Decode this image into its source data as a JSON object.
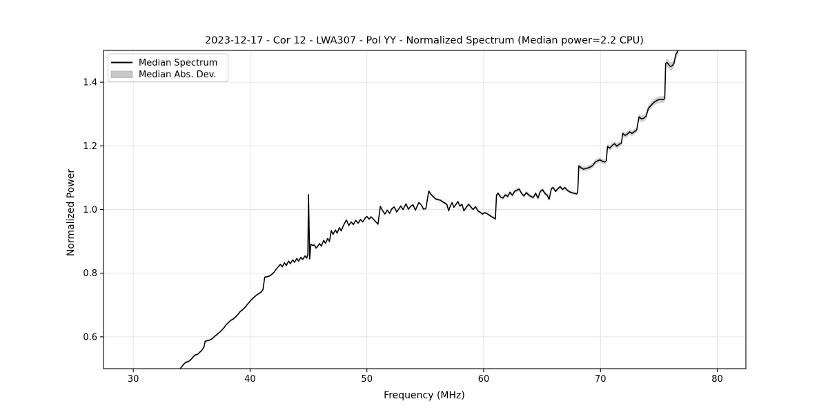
{
  "chart_data": {
    "type": "line",
    "title": "2023-12-17 - Cor 12 - LWA307 - Pol YY - Normalized Spectrum (Median power=2.2 CPU)",
    "xlabel": "Frequency (MHz)",
    "ylabel": "Normalized Power",
    "xlim": [
      27.45,
      82.45
    ],
    "ylim": [
      0.5,
      1.5
    ],
    "xticks": [
      30,
      40,
      50,
      60,
      70,
      80
    ],
    "yticks": [
      0.6,
      0.8,
      1.0,
      1.2,
      1.4
    ],
    "grid": true,
    "legend": {
      "position": "upper-left",
      "entries": [
        {
          "label": "Median Spectrum",
          "type": "line",
          "color": "#000000"
        },
        {
          "label": "Median Abs. Dev.",
          "type": "patch",
          "color": "#c9c9c9"
        }
      ]
    },
    "colors": {
      "line": "#000000",
      "band": "#c9c9c9",
      "grid": "#e4e4e4",
      "spine": "#000000"
    },
    "series": [
      {
        "name": "Median Spectrum",
        "points": [
          [
            33.95,
            0.497
          ],
          [
            34.1,
            0.504
          ],
          [
            34.25,
            0.511
          ],
          [
            34.4,
            0.517
          ],
          [
            34.55,
            0.521
          ],
          [
            34.7,
            0.522
          ],
          [
            34.85,
            0.526
          ],
          [
            35.0,
            0.531
          ],
          [
            35.15,
            0.538
          ],
          [
            35.3,
            0.543
          ],
          [
            35.5,
            0.545
          ],
          [
            35.7,
            0.552
          ],
          [
            35.9,
            0.559
          ],
          [
            36.05,
            0.568
          ],
          [
            36.15,
            0.586
          ],
          [
            36.35,
            0.588
          ],
          [
            36.55,
            0.59
          ],
          [
            36.75,
            0.594
          ],
          [
            36.95,
            0.601
          ],
          [
            37.15,
            0.607
          ],
          [
            37.35,
            0.613
          ],
          [
            37.55,
            0.62
          ],
          [
            37.75,
            0.628
          ],
          [
            37.95,
            0.638
          ],
          [
            38.15,
            0.645
          ],
          [
            38.35,
            0.652
          ],
          [
            38.55,
            0.656
          ],
          [
            38.75,
            0.662
          ],
          [
            38.95,
            0.67
          ],
          [
            39.15,
            0.679
          ],
          [
            39.35,
            0.685
          ],
          [
            39.55,
            0.692
          ],
          [
            39.75,
            0.701
          ],
          [
            39.95,
            0.71
          ],
          [
            40.15,
            0.718
          ],
          [
            40.35,
            0.725
          ],
          [
            40.55,
            0.731
          ],
          [
            40.75,
            0.736
          ],
          [
            40.95,
            0.741
          ],
          [
            41.1,
            0.748
          ],
          [
            41.25,
            0.787
          ],
          [
            41.45,
            0.789
          ],
          [
            41.65,
            0.791
          ],
          [
            41.85,
            0.796
          ],
          [
            42.05,
            0.803
          ],
          [
            42.25,
            0.813
          ],
          [
            42.45,
            0.822
          ],
          [
            42.6,
            0.828
          ],
          [
            42.75,
            0.82
          ],
          [
            42.95,
            0.833
          ],
          [
            43.1,
            0.824
          ],
          [
            43.3,
            0.838
          ],
          [
            43.45,
            0.83
          ],
          [
            43.65,
            0.842
          ],
          [
            43.8,
            0.834
          ],
          [
            44.0,
            0.846
          ],
          [
            44.15,
            0.838
          ],
          [
            44.35,
            0.85
          ],
          [
            44.5,
            0.843
          ],
          [
            44.7,
            0.854
          ],
          [
            44.85,
            0.848
          ],
          [
            44.95,
            0.858
          ],
          [
            45.0,
            1.047
          ],
          [
            45.1,
            0.845
          ],
          [
            45.2,
            0.891
          ],
          [
            45.35,
            0.887
          ],
          [
            45.5,
            0.889
          ],
          [
            45.65,
            0.879
          ],
          [
            45.8,
            0.885
          ],
          [
            45.95,
            0.893
          ],
          [
            46.1,
            0.885
          ],
          [
            46.3,
            0.903
          ],
          [
            46.45,
            0.894
          ],
          [
            46.65,
            0.909
          ],
          [
            46.8,
            0.899
          ],
          [
            46.95,
            0.934
          ],
          [
            47.1,
            0.922
          ],
          [
            47.3,
            0.936
          ],
          [
            47.45,
            0.926
          ],
          [
            47.65,
            0.943
          ],
          [
            47.8,
            0.933
          ],
          [
            48.0,
            0.951
          ],
          [
            48.25,
            0.967
          ],
          [
            48.45,
            0.95
          ],
          [
            48.65,
            0.961
          ],
          [
            48.85,
            0.953
          ],
          [
            49.05,
            0.966
          ],
          [
            49.25,
            0.957
          ],
          [
            49.45,
            0.969
          ],
          [
            49.65,
            0.961
          ],
          [
            49.85,
            0.973
          ],
          [
            50.0,
            0.978
          ],
          [
            50.2,
            0.97
          ],
          [
            50.35,
            0.977
          ],
          [
            50.55,
            0.97
          ],
          [
            50.75,
            0.962
          ],
          [
            50.95,
            0.954
          ],
          [
            51.15,
            1.01
          ],
          [
            51.35,
            0.996
          ],
          [
            51.55,
            0.986
          ],
          [
            51.75,
            0.998
          ],
          [
            51.95,
            0.988
          ],
          [
            52.15,
            1.003
          ],
          [
            52.35,
            1.008
          ],
          [
            52.55,
            0.992
          ],
          [
            52.75,
            1.003
          ],
          [
            52.9,
            1.011
          ],
          [
            53.1,
            1.0
          ],
          [
            53.35,
            1.018
          ],
          [
            53.55,
            1.001
          ],
          [
            53.75,
            1.01
          ],
          [
            53.95,
            1.015
          ],
          [
            54.15,
            0.998
          ],
          [
            54.45,
            1.022
          ],
          [
            54.65,
            1.015
          ],
          [
            54.85,
            1.001
          ],
          [
            55.05,
            1.003
          ],
          [
            55.3,
            1.058
          ],
          [
            55.5,
            1.047
          ],
          [
            55.7,
            1.04
          ],
          [
            55.9,
            1.033
          ],
          [
            56.1,
            1.031
          ],
          [
            56.3,
            1.029
          ],
          [
            56.5,
            1.024
          ],
          [
            56.7,
            1.02
          ],
          [
            56.85,
            1.016
          ],
          [
            57.0,
            0.996
          ],
          [
            57.15,
            1.011
          ],
          [
            57.3,
            1.022
          ],
          [
            57.45,
            1.007
          ],
          [
            57.6,
            1.015
          ],
          [
            57.8,
            1.025
          ],
          [
            57.95,
            1.011
          ],
          [
            58.15,
            1.016
          ],
          [
            58.3,
            0.996
          ],
          [
            58.5,
            1.006
          ],
          [
            58.7,
            1.017
          ],
          [
            58.9,
            1.008
          ],
          [
            59.1,
            1.0
          ],
          [
            59.3,
            1.009
          ],
          [
            59.5,
            0.996
          ],
          [
            59.7,
            0.991
          ],
          [
            59.9,
            0.986
          ],
          [
            60.1,
            0.99
          ],
          [
            60.3,
            0.987
          ],
          [
            60.5,
            0.982
          ],
          [
            60.7,
            0.977
          ],
          [
            60.9,
            0.973
          ],
          [
            61.0,
            0.97
          ],
          [
            61.1,
            1.046
          ],
          [
            61.25,
            1.051
          ],
          [
            61.45,
            1.039
          ],
          [
            61.65,
            1.036
          ],
          [
            61.85,
            1.046
          ],
          [
            62.05,
            1.041
          ],
          [
            62.25,
            1.054
          ],
          [
            62.45,
            1.045
          ],
          [
            62.65,
            1.057
          ],
          [
            62.85,
            1.061
          ],
          [
            63.05,
            1.064
          ],
          [
            63.25,
            1.05
          ],
          [
            63.45,
            1.043
          ],
          [
            63.65,
            1.053
          ],
          [
            63.85,
            1.046
          ],
          [
            64.05,
            1.041
          ],
          [
            64.25,
            1.038
          ],
          [
            64.45,
            1.051
          ],
          [
            64.65,
            1.036
          ],
          [
            64.85,
            1.057
          ],
          [
            65.05,
            1.062
          ],
          [
            65.25,
            1.05
          ],
          [
            65.45,
            1.045
          ],
          [
            65.6,
            1.032
          ],
          [
            65.8,
            1.066
          ],
          [
            65.95,
            1.069
          ],
          [
            66.15,
            1.057
          ],
          [
            66.35,
            1.065
          ],
          [
            66.55,
            1.072
          ],
          [
            66.75,
            1.063
          ],
          [
            66.95,
            1.069
          ],
          [
            67.15,
            1.061
          ],
          [
            67.35,
            1.056
          ],
          [
            67.55,
            1.053
          ],
          [
            67.75,
            1.051
          ],
          [
            67.95,
            1.049
          ],
          [
            68.05,
            1.053
          ],
          [
            68.15,
            1.137
          ],
          [
            68.35,
            1.131
          ],
          [
            68.55,
            1.127
          ],
          [
            68.75,
            1.129
          ],
          [
            68.95,
            1.131
          ],
          [
            69.15,
            1.134
          ],
          [
            69.35,
            1.139
          ],
          [
            69.55,
            1.149
          ],
          [
            69.75,
            1.153
          ],
          [
            69.95,
            1.156
          ],
          [
            70.15,
            1.152
          ],
          [
            70.35,
            1.149
          ],
          [
            70.5,
            1.153
          ],
          [
            70.6,
            1.198
          ],
          [
            70.8,
            1.193
          ],
          [
            71.0,
            1.201
          ],
          [
            71.2,
            1.207
          ],
          [
            71.4,
            1.199
          ],
          [
            71.6,
            1.205
          ],
          [
            71.8,
            1.209
          ],
          [
            71.9,
            1.239
          ],
          [
            72.1,
            1.233
          ],
          [
            72.3,
            1.237
          ],
          [
            72.5,
            1.244
          ],
          [
            72.7,
            1.239
          ],
          [
            72.9,
            1.245
          ],
          [
            73.1,
            1.249
          ],
          [
            73.3,
            1.291
          ],
          [
            73.5,
            1.285
          ],
          [
            73.7,
            1.287
          ],
          [
            73.9,
            1.293
          ],
          [
            74.1,
            1.318
          ],
          [
            74.3,
            1.326
          ],
          [
            74.5,
            1.334
          ],
          [
            74.7,
            1.34
          ],
          [
            74.9,
            1.344
          ],
          [
            75.1,
            1.346
          ],
          [
            75.3,
            1.345
          ],
          [
            75.5,
            1.348
          ],
          [
            75.58,
            1.459
          ],
          [
            75.7,
            1.462
          ],
          [
            75.85,
            1.455
          ],
          [
            76.0,
            1.449
          ],
          [
            76.15,
            1.452
          ],
          [
            76.3,
            1.46
          ],
          [
            76.45,
            1.487
          ],
          [
            76.6,
            1.496
          ],
          [
            76.75,
            1.515
          ]
        ]
      }
    ],
    "band": {
      "name": "Median Abs. Dev.",
      "halfwidth_segments": [
        [
          27.45,
          44.8,
          0.003
        ],
        [
          44.8,
          45.18,
          0.009
        ],
        [
          45.18,
          55.0,
          0.0032
        ],
        [
          55.0,
          61.02,
          0.0042
        ],
        [
          61.02,
          65.5,
          0.006
        ],
        [
          65.5,
          68.05,
          0.005
        ],
        [
          68.05,
          70.52,
          0.008
        ],
        [
          70.52,
          73.2,
          0.0085
        ],
        [
          73.2,
          75.52,
          0.0105
        ],
        [
          75.52,
          82.45,
          0.013
        ]
      ]
    }
  }
}
